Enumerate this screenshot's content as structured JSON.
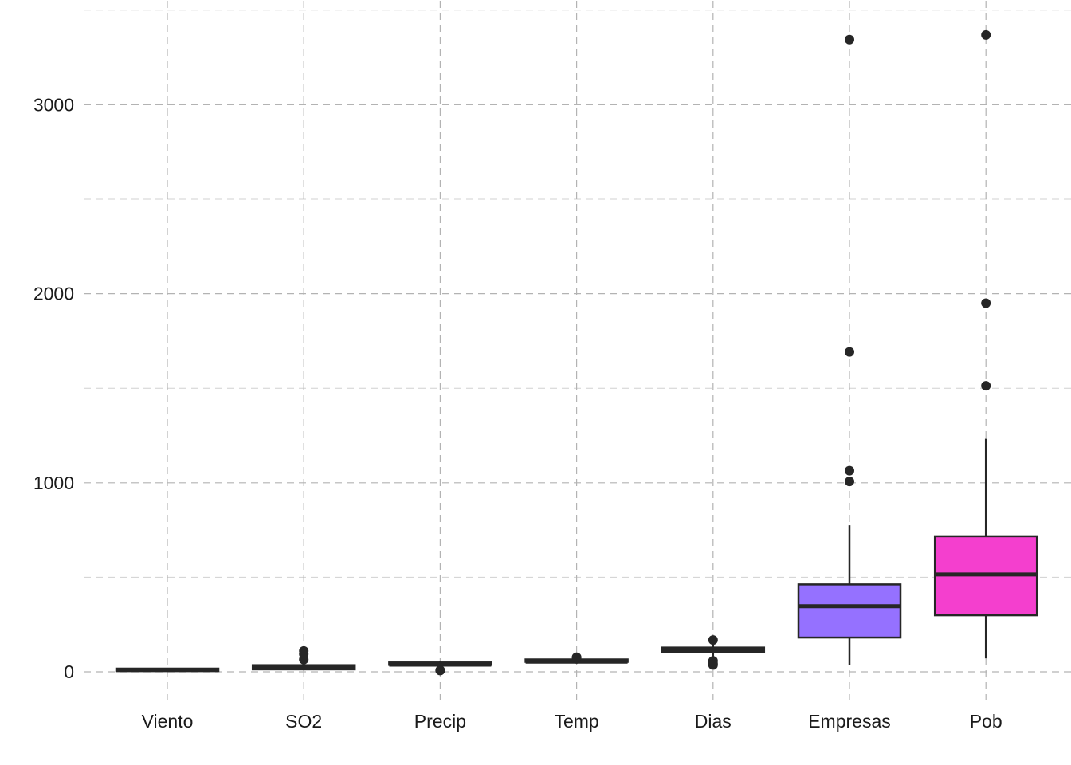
{
  "chart_data": {
    "type": "boxplot",
    "title": "",
    "xlabel": "",
    "ylabel": "",
    "ylim": [
      -150,
      3550
    ],
    "y_ticks": [
      0,
      1000,
      2000,
      3000
    ],
    "y_tick_labels": [
      "0",
      "1000",
      "2000",
      "3000"
    ],
    "grid": true,
    "grid_style": "dashed",
    "legend": "none",
    "categories": [
      "Viento",
      "SO2",
      "Precip",
      "Temp",
      "Dias",
      "Empresas",
      "Pob"
    ],
    "boxes": [
      {
        "name": "Viento",
        "min": 6,
        "q1": 8.7,
        "median": 9.4,
        "q3": 10.6,
        "max": 12.7,
        "outliers": [],
        "color": "#f8766d"
      },
      {
        "name": "SO2",
        "min": 8,
        "q1": 13,
        "median": 26,
        "q3": 35,
        "max": 61,
        "outliers": [
          65,
          94,
          110
        ],
        "color": "#c49a00"
      },
      {
        "name": "Precip",
        "min": 17,
        "q1": 31,
        "median": 38,
        "q3": 43,
        "max": 59,
        "outliers": [
          7,
          8
        ],
        "color": "#53b400"
      },
      {
        "name": "Temp",
        "min": 43,
        "q1": 50,
        "median": 54,
        "q3": 59,
        "max": 70,
        "outliers": [
          75,
          77
        ],
        "color": "#00c094"
      },
      {
        "name": "Dias",
        "min": 80,
        "q1": 103,
        "median": 115,
        "q3": 128,
        "max": 166,
        "outliers": [
          36,
          45,
          58,
          168
        ],
        "color": "#00b6eb"
      },
      {
        "name": "Empresas",
        "min": 35,
        "q1": 181,
        "median": 347,
        "q3": 462,
        "max": 775,
        "outliers": [
          1007,
          1064,
          1692,
          3344
        ],
        "color": "#9571ff"
      },
      {
        "name": "Pob",
        "min": 71,
        "q1": 299,
        "median": 515,
        "q3": 717,
        "max": 1233,
        "outliers": [
          1513,
          1950,
          3369
        ],
        "color": "#f43fce"
      }
    ]
  }
}
